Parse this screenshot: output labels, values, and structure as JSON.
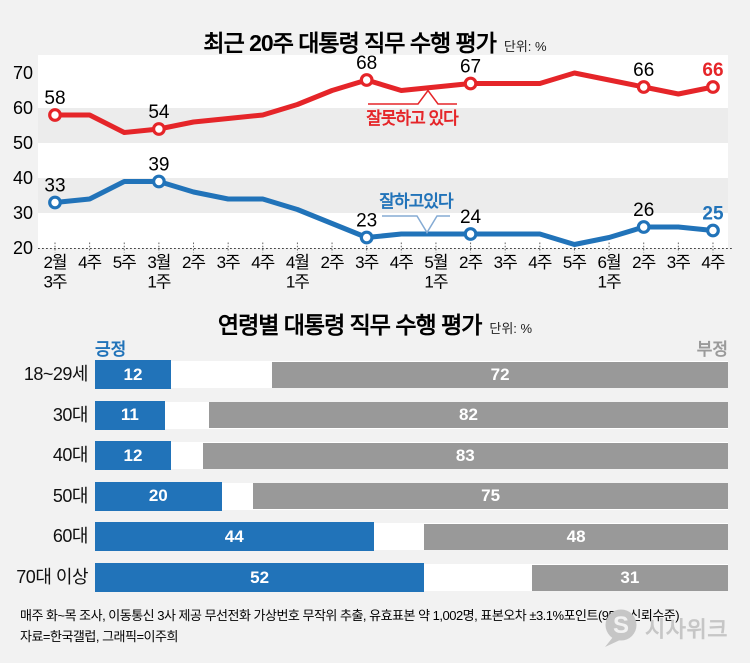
{
  "chart_data": [
    {
      "type": "line",
      "title": "최근 20주 대통령 직무 수행 평가",
      "unit": "단위: %",
      "x": [
        "2월\n3주",
        "4주",
        "5주",
        "3월\n1주",
        "2주",
        "3주",
        "4주",
        "4월\n1주",
        "2주",
        "3주",
        "4주",
        "5월\n1주",
        "2주",
        "3주",
        "4주",
        "5주",
        "6월\n1주",
        "2주",
        "3주",
        "4주"
      ],
      "ylim": [
        20,
        75
      ],
      "yticks": [
        20,
        30,
        40,
        50,
        60,
        70
      ],
      "grid": "alternating-bands",
      "legend_position": "inline-callouts",
      "series": [
        {
          "name": "잘못하고 있다",
          "color": "#e52529",
          "values": [
            58,
            58,
            53,
            54,
            56,
            57,
            58,
            61,
            65,
            68,
            65,
            66,
            67,
            67,
            67,
            70,
            68,
            66,
            64,
            66
          ],
          "marked_indices": [
            0,
            3,
            9,
            12,
            17,
            19
          ],
          "marked_labels": [
            "58",
            "54",
            "68",
            "67",
            "66",
            "66"
          ]
        },
        {
          "name": "잘하고있다",
          "color": "#2173b9",
          "values": [
            33,
            34,
            39,
            39,
            36,
            34,
            34,
            31,
            27,
            23,
            24,
            24,
            24,
            24,
            24,
            21,
            23,
            26,
            26,
            25
          ],
          "marked_indices": [
            0,
            3,
            9,
            12,
            17,
            19
          ],
          "marked_labels": [
            "33",
            "39",
            "23",
            "24",
            "26",
            "25"
          ]
        }
      ]
    },
    {
      "type": "bar",
      "title": "연령별 대통령 직무 수행 평가",
      "unit": "단위: %",
      "orientation": "horizontal",
      "xlim": [
        0,
        100
      ],
      "categories": [
        "18~29세",
        "30대",
        "40대",
        "50대",
        "60대",
        "70대 이상"
      ],
      "series": [
        {
          "name": "긍정",
          "color": "#2173b9",
          "values": [
            12,
            11,
            12,
            20,
            44,
            52
          ]
        },
        {
          "name": "부정",
          "color": "#999999",
          "values": [
            72,
            82,
            83,
            75,
            48,
            31
          ]
        }
      ],
      "legend_colors": {
        "positive_text": "#2173b9",
        "negative_text": "#9a9a9a"
      }
    }
  ],
  "styles": {
    "background": "#f2f2f2",
    "plot_background": "#ffffff",
    "band_gray": "#ececec",
    "axis_text": "#000000",
    "baseline": "#444444",
    "blue_callout_line": "#85abd4"
  },
  "footer": {
    "line1": "매주 화~목 조사, 이동통신 3사 제공 무선전화 가상번호 무작위 추출, 유효표본 약 1,002명, 표본오차 ±3.1%포인트(95% 신뢰수준)",
    "line2": "자료=한국갤럽, 그래픽=이주희"
  },
  "logo": {
    "text": "시사위크",
    "mark": "speech-bubble-S",
    "color": "#c6c6c6"
  }
}
